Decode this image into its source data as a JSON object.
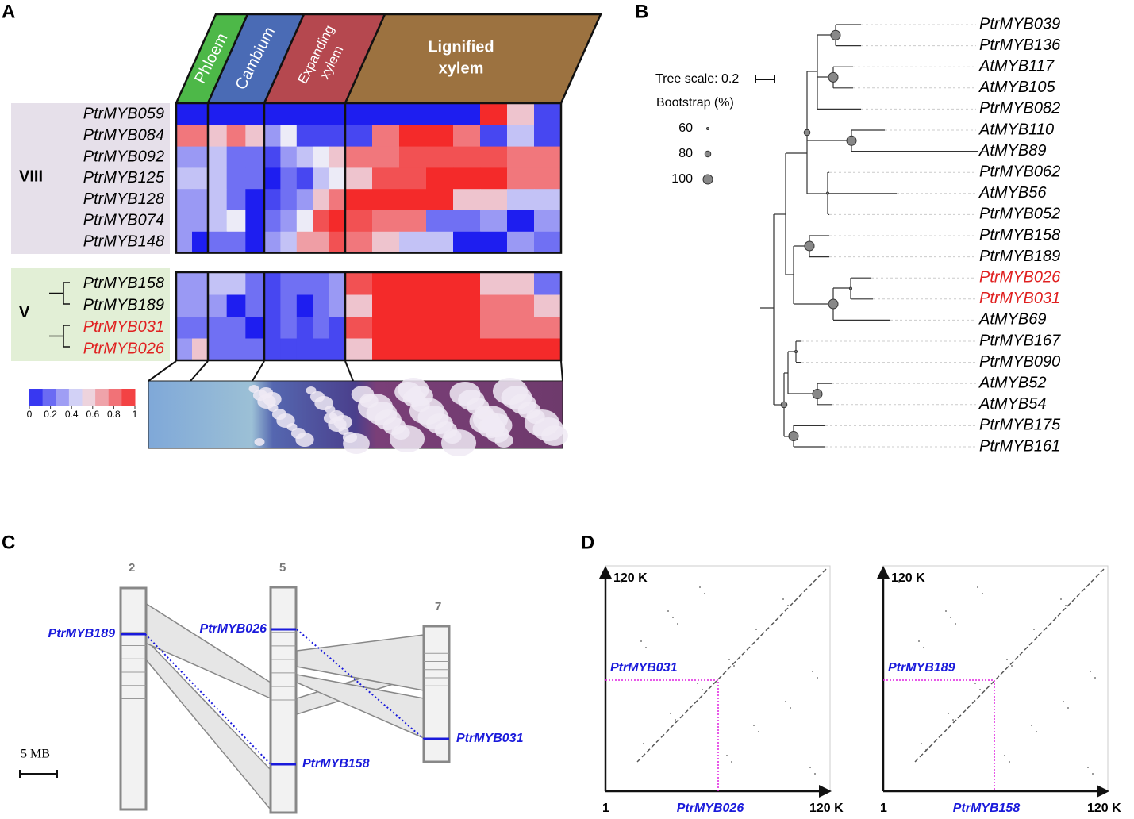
{
  "A": {
    "label": "A",
    "stages": [
      {
        "lines": [
          "Phloem"
        ],
        "color": "#4db848"
      },
      {
        "lines": [
          "Cambium"
        ],
        "color": "#4a6bb5"
      },
      {
        "lines": [
          "Expanding",
          "xylem"
        ],
        "color": "#b5484f"
      },
      {
        "lines": [
          "Lignified",
          "xylem"
        ],
        "color": "#9c7240"
      }
    ],
    "colormap": [
      "#1e1ef0",
      "#ecebf7",
      "#f42a2a"
    ],
    "groups": [
      {
        "name": "VIII",
        "box_color": "#e6e0ea",
        "genes": [
          "PtrMYB059",
          "PtrMYB084",
          "PtrMYB092",
          "PtrMYB125",
          "PtrMYB128",
          "PtrMYB074",
          "PtrMYB148"
        ],
        "gene_colors": [
          "#000",
          "#000",
          "#000",
          "#000",
          "#000",
          "#000",
          "#000"
        ],
        "values": [
          [
            0,
            0,
            0,
            0,
            0,
            0,
            0,
            0,
            0,
            0,
            0,
            0,
            0,
            0,
            0,
            1,
            0.6,
            0.1
          ],
          [
            0.8,
            0.8,
            0.6,
            0.8,
            0.6,
            0.3,
            0.5,
            0.1,
            0.1,
            0.1,
            0.1,
            0.8,
            1,
            1,
            0.8,
            0.1,
            0.4,
            0.1
          ],
          [
            0.3,
            0.3,
            0.4,
            0.2,
            0.2,
            0.1,
            0.3,
            0.4,
            0.5,
            0.6,
            0.8,
            0.8,
            0.9,
            0.9,
            0.9,
            0.9,
            0.8,
            0.8
          ],
          [
            0.4,
            0.4,
            0.4,
            0.2,
            0.2,
            0,
            0.2,
            0.1,
            0.4,
            0.5,
            0.6,
            0.9,
            0.9,
            1,
            1,
            1,
            0.8,
            0.8
          ],
          [
            0.3,
            0.3,
            0.4,
            0.2,
            0,
            0.1,
            0.2,
            0.3,
            0.6,
            0.8,
            1,
            1,
            1,
            1,
            0.6,
            0.6,
            0.4,
            0.4
          ],
          [
            0.3,
            0.3,
            0.4,
            0.5,
            0,
            0.2,
            0.3,
            0.5,
            0.9,
            1,
            0.9,
            0.8,
            0.8,
            0.2,
            0.2,
            0.3,
            0,
            0.3
          ],
          [
            0.3,
            0,
            0.2,
            0.2,
            0,
            0.3,
            0.4,
            0.7,
            0.7,
            0.9,
            0.8,
            0.6,
            0.4,
            0.4,
            0,
            0,
            0.3,
            0.2
          ]
        ]
      },
      {
        "name": "V",
        "box_color": "#e2efd6",
        "genes": [
          "PtrMYB158",
          "PtrMYB189",
          "PtrMYB031",
          "PtrMYB026"
        ],
        "gene_colors": [
          "#000",
          "#000",
          "#e02020",
          "#e02020"
        ],
        "values": [
          [
            0.3,
            0.3,
            0.4,
            0.4,
            0.2,
            0.1,
            0.2,
            0.2,
            0.2,
            0.3,
            0.9,
            1,
            1,
            1,
            1,
            0.6,
            0.6,
            0.2
          ],
          [
            0.3,
            0.3,
            0.3,
            0,
            0.2,
            0.1,
            0.2,
            0,
            0.2,
            0.3,
            0.6,
            1,
            1,
            1,
            1,
            0.8,
            0.8,
            0.6
          ],
          [
            0.2,
            0.2,
            0.2,
            0.2,
            0,
            0.1,
            0.2,
            0.1,
            0.2,
            0.1,
            0.9,
            1,
            1,
            1,
            1,
            0.8,
            0.8,
            0.8
          ],
          [
            0.3,
            0.6,
            0.2,
            0.2,
            0.2,
            0.1,
            0.1,
            0.1,
            0.1,
            0.1,
            0.6,
            1,
            1,
            1,
            1,
            1,
            1,
            1
          ]
        ]
      }
    ],
    "colorbar_ticks": [
      0,
      0.2,
      0.4,
      0.6,
      0.8,
      1
    ]
  },
  "B": {
    "label": "B",
    "tree_scale": "Tree scale: 0.2",
    "bootstrap_title": "Bootstrap (%)",
    "bootstrap_levels": [
      60,
      80,
      100
    ],
    "leaves": [
      "PtrMYB039",
      "PtrMYB136",
      "AtMYB117",
      "AtMYB105",
      "PtrMYB082",
      "AtMYB110",
      "AtMYB89",
      "PtrMYB062",
      "AtMYB56",
      "PtrMYB052",
      "PtrMYB158",
      "PtrMYB189",
      "PtrMYB026",
      "PtrMYB031",
      "AtMYB69",
      "PtrMYB167",
      "PtrMYB090",
      "AtMYB52",
      "AtMYB54",
      "PtrMYB175",
      "PtrMYB161"
    ],
    "leaf_colors": [
      "#000",
      "#000",
      "#000",
      "#000",
      "#000",
      "#000",
      "#000",
      "#000",
      "#000",
      "#000",
      "#000",
      "#000",
      "#e02020",
      "#e02020",
      "#000",
      "#000",
      "#000",
      "#000",
      "#000",
      "#000",
      "#000"
    ]
  },
  "C": {
    "label": "C",
    "chromosomes": [
      "2",
      "5",
      "7"
    ],
    "genes": [
      "PtrMYB189",
      "PtrMYB026",
      "PtrMYB158",
      "PtrMYB031"
    ],
    "gene_color": "#1a1adb",
    "scale": "5 MB"
  },
  "D": {
    "label": "D",
    "axis_min": "1",
    "axis_max": "120 K",
    "label_color": "#1a1adb",
    "plots": [
      {
        "x_label": "PtrMYB026",
        "y_label": "PtrMYB031"
      },
      {
        "x_label": "PtrMYB158",
        "y_label": "PtrMYB189"
      }
    ]
  }
}
